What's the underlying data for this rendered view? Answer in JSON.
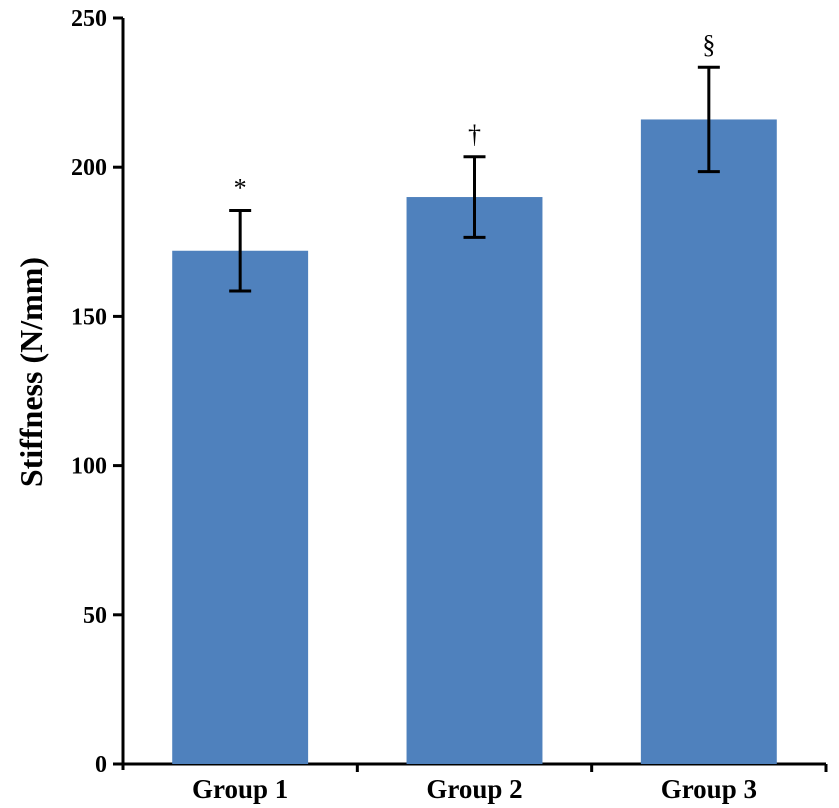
{
  "chart_data": {
    "type": "bar",
    "title": "",
    "xlabel": "",
    "ylabel": "Stiffness (N/mm)",
    "ylim": [
      0,
      250
    ],
    "yticks": [
      0,
      50,
      100,
      150,
      200,
      250
    ],
    "categories": [
      "Group 1",
      "Group 2",
      "Group 3"
    ],
    "values": [
      172,
      190,
      216
    ],
    "error": [
      13.5,
      13.5,
      17.5
    ],
    "annotations": [
      "*",
      "†",
      "§"
    ],
    "bar_color": "#4f81bd",
    "grid": false
  }
}
